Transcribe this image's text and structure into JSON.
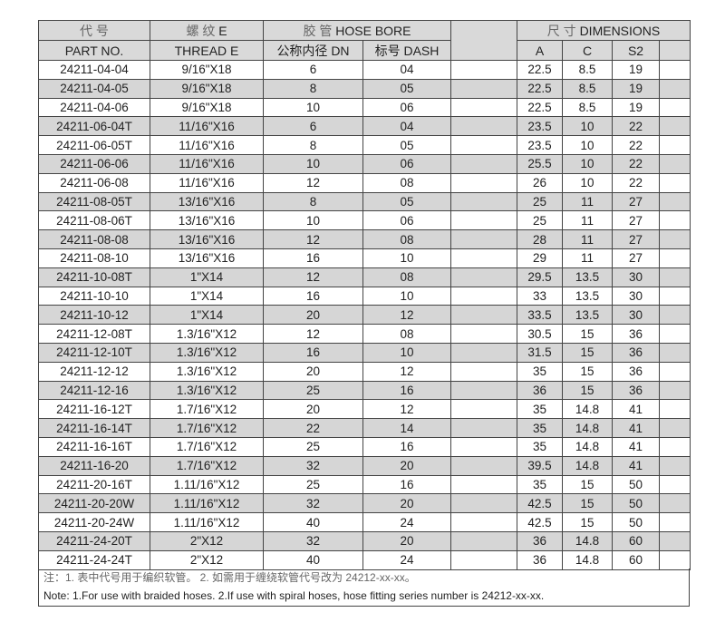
{
  "header": {
    "part_cn": "代 号",
    "part_en": "PART NO.",
    "thread_cn": "螺 纹",
    "thread_en": "THREAD  E",
    "thread_e": "E",
    "hose_cn": "胶 管",
    "hose_en": "HOSE BORE",
    "dn": "公称内径 DN",
    "dash": "标号 DASH",
    "dim_cn": "尺 寸",
    "dim_en": "DIMENSIONS",
    "a": "A",
    "c": "C",
    "s2": "S2"
  },
  "rows": [
    [
      "24211-04-04",
      "9/16\"X18",
      "6",
      "04",
      "22.5",
      "8.5",
      "19"
    ],
    [
      "24211-04-05",
      "9/16\"X18",
      "8",
      "05",
      "22.5",
      "8.5",
      "19"
    ],
    [
      "24211-04-06",
      "9/16\"X18",
      "10",
      "06",
      "22.5",
      "8.5",
      "19"
    ],
    [
      "24211-06-04T",
      "11/16\"X16",
      "6",
      "04",
      "23.5",
      "10",
      "22"
    ],
    [
      "24211-06-05T",
      "11/16\"X16",
      "8",
      "05",
      "23.5",
      "10",
      "22"
    ],
    [
      "24211-06-06",
      "11/16\"X16",
      "10",
      "06",
      "25.5",
      "10",
      "22"
    ],
    [
      "24211-06-08",
      "11/16\"X16",
      "12",
      "08",
      "26",
      "10",
      "22"
    ],
    [
      "24211-08-05T",
      "13/16\"X16",
      "8",
      "05",
      "25",
      "11",
      "27"
    ],
    [
      "24211-08-06T",
      "13/16\"X16",
      "10",
      "06",
      "25",
      "11",
      "27"
    ],
    [
      "24211-08-08",
      "13/16\"X16",
      "12",
      "08",
      "28",
      "11",
      "27"
    ],
    [
      "24211-08-10",
      "13/16\"X16",
      "16",
      "10",
      "29",
      "11",
      "27"
    ],
    [
      "24211-10-08T",
      "1\"X14",
      "12",
      "08",
      "29.5",
      "13.5",
      "30"
    ],
    [
      "24211-10-10",
      "1\"X14",
      "16",
      "10",
      "33",
      "13.5",
      "30"
    ],
    [
      "24211-10-12",
      "1\"X14",
      "20",
      "12",
      "33.5",
      "13.5",
      "30"
    ],
    [
      "24211-12-08T",
      "1.3/16\"X12",
      "12",
      "08",
      "30.5",
      "15",
      "36"
    ],
    [
      "24211-12-10T",
      "1.3/16\"X12",
      "16",
      "10",
      "31.5",
      "15",
      "36"
    ],
    [
      "24211-12-12",
      "1.3/16\"X12",
      "20",
      "12",
      "35",
      "15",
      "36"
    ],
    [
      "24211-12-16",
      "1.3/16\"X12",
      "25",
      "16",
      "36",
      "15",
      "36"
    ],
    [
      "24211-16-12T",
      "1.7/16\"X12",
      "20",
      "12",
      "35",
      "14.8",
      "41"
    ],
    [
      "24211-16-14T",
      "1.7/16\"X12",
      "22",
      "14",
      "35",
      "14.8",
      "41"
    ],
    [
      "24211-16-16T",
      "1.7/16\"X12",
      "25",
      "16",
      "35",
      "14.8",
      "41"
    ],
    [
      "24211-16-20",
      "1.7/16\"X12",
      "32",
      "20",
      "39.5",
      "14.8",
      "41"
    ],
    [
      "24211-20-16T",
      "1.11/16\"X12",
      "25",
      "16",
      "35",
      "15",
      "50"
    ],
    [
      "24211-20-20W",
      "1.11/16\"X12",
      "32",
      "20",
      "42.5",
      "15",
      "50"
    ],
    [
      "24211-20-24W",
      "1.11/16\"X12",
      "40",
      "24",
      "42.5",
      "15",
      "50"
    ],
    [
      "24211-24-20T",
      "2\"X12",
      "32",
      "20",
      "36",
      "14.8",
      "60"
    ],
    [
      "24211-24-24T",
      "2\"X12",
      "40",
      "24",
      "36",
      "14.8",
      "60"
    ]
  ],
  "notes": {
    "cn": "注：1. 表中代号用于编织软管。        2. 如需用于缠绕软管代号改为 24212-xx-xx。",
    "en": "Note: 1.For use with braided hoses.   2.If use with spiral hoses, hose fitting series number is 24212-xx-xx."
  }
}
